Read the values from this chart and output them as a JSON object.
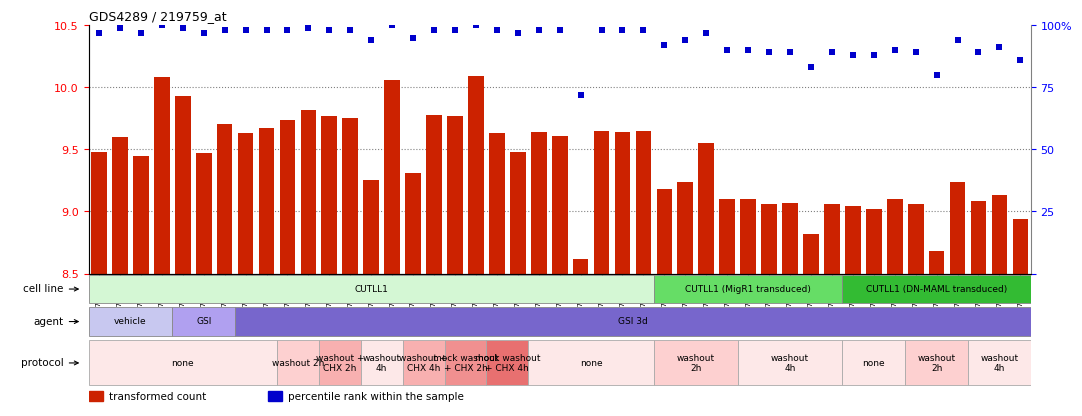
{
  "title": "GDS4289 / 219759_at",
  "samples": [
    "GSM731500",
    "GSM731501",
    "GSM731502",
    "GSM731503",
    "GSM731504",
    "GSM731505",
    "GSM731518",
    "GSM731519",
    "GSM731520",
    "GSM731506",
    "GSM731507",
    "GSM731508",
    "GSM731509",
    "GSM731510",
    "GSM731511",
    "GSM731512",
    "GSM731513",
    "GSM731514",
    "GSM731515",
    "GSM731516",
    "GSM731517",
    "GSM731521",
    "GSM731522",
    "GSM731523",
    "GSM731524",
    "GSM731525",
    "GSM731526",
    "GSM731527",
    "GSM731528",
    "GSM731529",
    "GSM731531",
    "GSM731532",
    "GSM731533",
    "GSM731534",
    "GSM731535",
    "GSM731536",
    "GSM731537",
    "GSM731538",
    "GSM731539",
    "GSM731540",
    "GSM731541",
    "GSM731542",
    "GSM731543",
    "GSM731544",
    "GSM731545"
  ],
  "bar_values": [
    9.48,
    9.6,
    9.45,
    10.08,
    9.93,
    9.47,
    9.7,
    9.63,
    9.67,
    9.74,
    9.82,
    9.77,
    9.75,
    9.25,
    10.06,
    9.31,
    9.78,
    9.77,
    10.09,
    9.63,
    9.48,
    9.64,
    9.61,
    8.62,
    9.65,
    9.64,
    9.65,
    9.18,
    9.24,
    9.55,
    9.1,
    9.1,
    9.06,
    9.07,
    8.82,
    9.06,
    9.04,
    9.02,
    9.1,
    9.06,
    8.68,
    9.24,
    9.08,
    9.13,
    8.94
  ],
  "percentile_values": [
    97,
    99,
    97,
    100,
    99,
    97,
    98,
    98,
    98,
    98,
    99,
    98,
    98,
    94,
    100,
    95,
    98,
    98,
    100,
    98,
    97,
    98,
    98,
    72,
    98,
    98,
    98,
    92,
    94,
    97,
    90,
    90,
    89,
    89,
    83,
    89,
    88,
    88,
    90,
    89,
    80,
    94,
    89,
    91,
    86
  ],
  "ylim_left": [
    8.5,
    10.5
  ],
  "ylim_right": [
    0,
    100
  ],
  "yticks_left": [
    8.5,
    9.0,
    9.5,
    10.0,
    10.5
  ],
  "yticks_right": [
    0,
    25,
    50,
    75,
    100
  ],
  "bar_color": "#cc2200",
  "dot_color": "#0000cc",
  "background_color": "#ffffff",
  "cell_line_groups": [
    {
      "label": "CUTLL1",
      "start": 0,
      "end": 26,
      "color": "#d4f7d4",
      "border": "#888888"
    },
    {
      "label": "CUTLL1 (MigR1 transduced)",
      "start": 27,
      "end": 35,
      "color": "#66dd66",
      "border": "#888888"
    },
    {
      "label": "CUTLL1 (DN-MAML transduced)",
      "start": 36,
      "end": 44,
      "color": "#33bb33",
      "border": "#888888"
    }
  ],
  "agent_groups": [
    {
      "label": "vehicle",
      "start": 0,
      "end": 3,
      "color": "#c8c8f0",
      "border": "#888888"
    },
    {
      "label": "GSI",
      "start": 4,
      "end": 6,
      "color": "#b0a0f0",
      "border": "#888888"
    },
    {
      "label": "GSI 3d",
      "start": 7,
      "end": 44,
      "color": "#7766cc",
      "border": "#888888"
    }
  ],
  "protocol_groups": [
    {
      "label": "none",
      "start": 0,
      "end": 8,
      "color": "#fde8e8",
      "border": "#aaaaaa"
    },
    {
      "label": "washout 2h",
      "start": 9,
      "end": 10,
      "color": "#fdd0d0",
      "border": "#aaaaaa"
    },
    {
      "label": "washout +\nCHX 2h",
      "start": 11,
      "end": 12,
      "color": "#f8b0b0",
      "border": "#aaaaaa"
    },
    {
      "label": "washout\n4h",
      "start": 13,
      "end": 14,
      "color": "#fde8e8",
      "border": "#aaaaaa"
    },
    {
      "label": "washout +\nCHX 4h",
      "start": 15,
      "end": 16,
      "color": "#f8b0b0",
      "border": "#aaaaaa"
    },
    {
      "label": "mock washout\n+ CHX 2h",
      "start": 17,
      "end": 18,
      "color": "#f09090",
      "border": "#aaaaaa"
    },
    {
      "label": "mock washout\n+ CHX 4h",
      "start": 19,
      "end": 20,
      "color": "#e87070",
      "border": "#aaaaaa"
    },
    {
      "label": "none",
      "start": 21,
      "end": 26,
      "color": "#fde8e8",
      "border": "#aaaaaa"
    },
    {
      "label": "washout\n2h",
      "start": 27,
      "end": 30,
      "color": "#fdd0d0",
      "border": "#aaaaaa"
    },
    {
      "label": "washout\n4h",
      "start": 31,
      "end": 35,
      "color": "#fde8e8",
      "border": "#aaaaaa"
    },
    {
      "label": "none",
      "start": 36,
      "end": 38,
      "color": "#fde8e8",
      "border": "#aaaaaa"
    },
    {
      "label": "washout\n2h",
      "start": 39,
      "end": 41,
      "color": "#fdd0d0",
      "border": "#aaaaaa"
    },
    {
      "label": "washout\n4h",
      "start": 42,
      "end": 44,
      "color": "#fde8e8",
      "border": "#aaaaaa"
    }
  ]
}
